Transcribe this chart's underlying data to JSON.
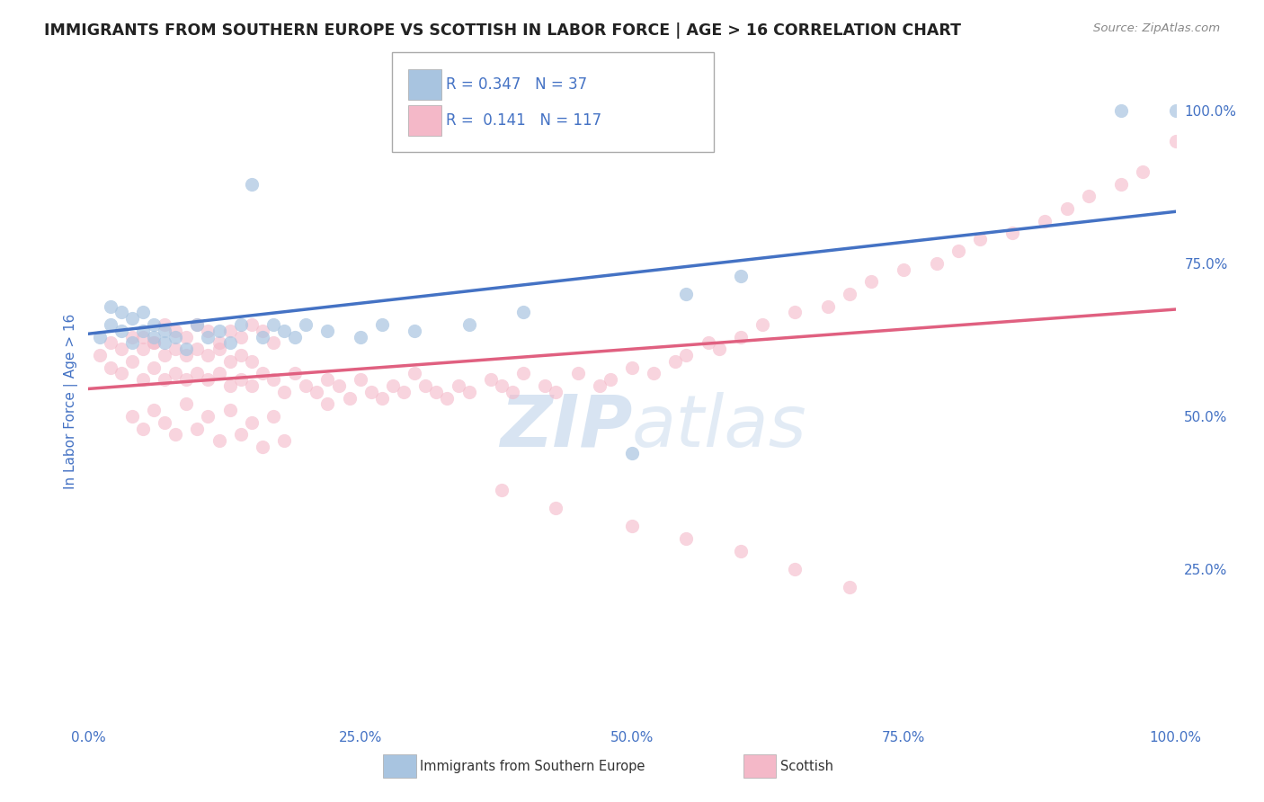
{
  "title": "IMMIGRANTS FROM SOUTHERN EUROPE VS SCOTTISH IN LABOR FORCE | AGE > 16 CORRELATION CHART",
  "source_text": "Source: ZipAtlas.com",
  "ylabel": "In Labor Force | Age > 16",
  "x_min": 0.0,
  "x_max": 1.0,
  "y_min": 0.0,
  "y_max": 1.05,
  "blue_R": 0.347,
  "blue_N": 37,
  "pink_R": 0.141,
  "pink_N": 117,
  "blue_color": "#a8c4e0",
  "pink_color": "#f4b8c8",
  "blue_line_color": "#4472c4",
  "pink_line_color": "#e06080",
  "legend_R_color": "#4472c4",
  "watermark_color": "#c8d8e8",
  "background_color": "#ffffff",
  "grid_color": "#c0c0c0",
  "title_color": "#222222",
  "tick_label_color": "#4472c4",
  "blue_line_y0": 0.635,
  "blue_line_y1": 0.835,
  "pink_line_y0": 0.545,
  "pink_line_y1": 0.675,
  "legend_label_blue": "Immigrants from Southern Europe",
  "legend_label_pink": "Scottish",
  "x_tick_labels": [
    "0.0%",
    "25.0%",
    "50.0%",
    "75.0%",
    "100.0%"
  ],
  "x_tick_vals": [
    0.0,
    0.25,
    0.5,
    0.75,
    1.0
  ],
  "y_tick_labels_right": [
    "100.0%",
    "75.0%",
    "50.0%",
    "25.0%"
  ],
  "y_tick_vals_right": [
    1.0,
    0.75,
    0.5,
    0.25
  ],
  "blue_scatter_x": [
    0.01,
    0.02,
    0.02,
    0.03,
    0.03,
    0.04,
    0.04,
    0.05,
    0.05,
    0.06,
    0.06,
    0.07,
    0.07,
    0.08,
    0.09,
    0.1,
    0.11,
    0.12,
    0.13,
    0.14,
    0.15,
    0.16,
    0.17,
    0.18,
    0.19,
    0.2,
    0.22,
    0.25,
    0.27,
    0.3,
    0.35,
    0.4,
    0.5,
    0.55,
    0.6,
    0.95,
    1.0
  ],
  "blue_scatter_y": [
    0.63,
    0.65,
    0.68,
    0.64,
    0.67,
    0.62,
    0.66,
    0.64,
    0.67,
    0.63,
    0.65,
    0.62,
    0.64,
    0.63,
    0.61,
    0.65,
    0.63,
    0.64,
    0.62,
    0.65,
    0.88,
    0.63,
    0.65,
    0.64,
    0.63,
    0.65,
    0.64,
    0.63,
    0.65,
    0.64,
    0.65,
    0.67,
    0.44,
    0.7,
    0.73,
    1.0,
    1.0
  ],
  "pink_scatter_x": [
    0.01,
    0.02,
    0.02,
    0.03,
    0.03,
    0.04,
    0.04,
    0.05,
    0.05,
    0.06,
    0.06,
    0.07,
    0.07,
    0.08,
    0.08,
    0.09,
    0.09,
    0.1,
    0.1,
    0.11,
    0.11,
    0.12,
    0.12,
    0.13,
    0.13,
    0.14,
    0.14,
    0.15,
    0.15,
    0.16,
    0.17,
    0.18,
    0.19,
    0.2,
    0.21,
    0.22,
    0.22,
    0.23,
    0.24,
    0.25,
    0.26,
    0.27,
    0.28,
    0.29,
    0.3,
    0.31,
    0.32,
    0.33,
    0.34,
    0.35,
    0.37,
    0.38,
    0.39,
    0.4,
    0.42,
    0.43,
    0.45,
    0.47,
    0.48,
    0.5,
    0.52,
    0.54,
    0.55,
    0.57,
    0.58,
    0.6,
    0.62,
    0.65,
    0.68,
    0.7,
    0.72,
    0.75,
    0.78,
    0.8,
    0.82,
    0.85,
    0.88,
    0.9,
    0.92,
    0.95,
    0.97,
    1.0,
    0.04,
    0.05,
    0.06,
    0.07,
    0.08,
    0.09,
    0.1,
    0.11,
    0.12,
    0.13,
    0.14,
    0.15,
    0.16,
    0.17,
    0.18,
    0.05,
    0.06,
    0.07,
    0.08,
    0.09,
    0.1,
    0.11,
    0.12,
    0.13,
    0.14,
    0.15,
    0.16,
    0.17,
    0.38,
    0.43,
    0.5,
    0.55,
    0.6,
    0.65,
    0.7
  ],
  "pink_scatter_y": [
    0.6,
    0.62,
    0.58,
    0.61,
    0.57,
    0.63,
    0.59,
    0.61,
    0.56,
    0.62,
    0.58,
    0.6,
    0.56,
    0.61,
    0.57,
    0.6,
    0.56,
    0.61,
    0.57,
    0.6,
    0.56,
    0.61,
    0.57,
    0.59,
    0.55,
    0.6,
    0.56,
    0.59,
    0.55,
    0.57,
    0.56,
    0.54,
    0.57,
    0.55,
    0.54,
    0.56,
    0.52,
    0.55,
    0.53,
    0.56,
    0.54,
    0.53,
    0.55,
    0.54,
    0.57,
    0.55,
    0.54,
    0.53,
    0.55,
    0.54,
    0.56,
    0.55,
    0.54,
    0.57,
    0.55,
    0.54,
    0.57,
    0.55,
    0.56,
    0.58,
    0.57,
    0.59,
    0.6,
    0.62,
    0.61,
    0.63,
    0.65,
    0.67,
    0.68,
    0.7,
    0.72,
    0.74,
    0.75,
    0.77,
    0.79,
    0.8,
    0.82,
    0.84,
    0.86,
    0.88,
    0.9,
    0.95,
    0.5,
    0.48,
    0.51,
    0.49,
    0.47,
    0.52,
    0.48,
    0.5,
    0.46,
    0.51,
    0.47,
    0.49,
    0.45,
    0.5,
    0.46,
    0.63,
    0.62,
    0.65,
    0.64,
    0.63,
    0.65,
    0.64,
    0.62,
    0.64,
    0.63,
    0.65,
    0.64,
    0.62,
    0.38,
    0.35,
    0.32,
    0.3,
    0.28,
    0.25,
    0.22
  ]
}
